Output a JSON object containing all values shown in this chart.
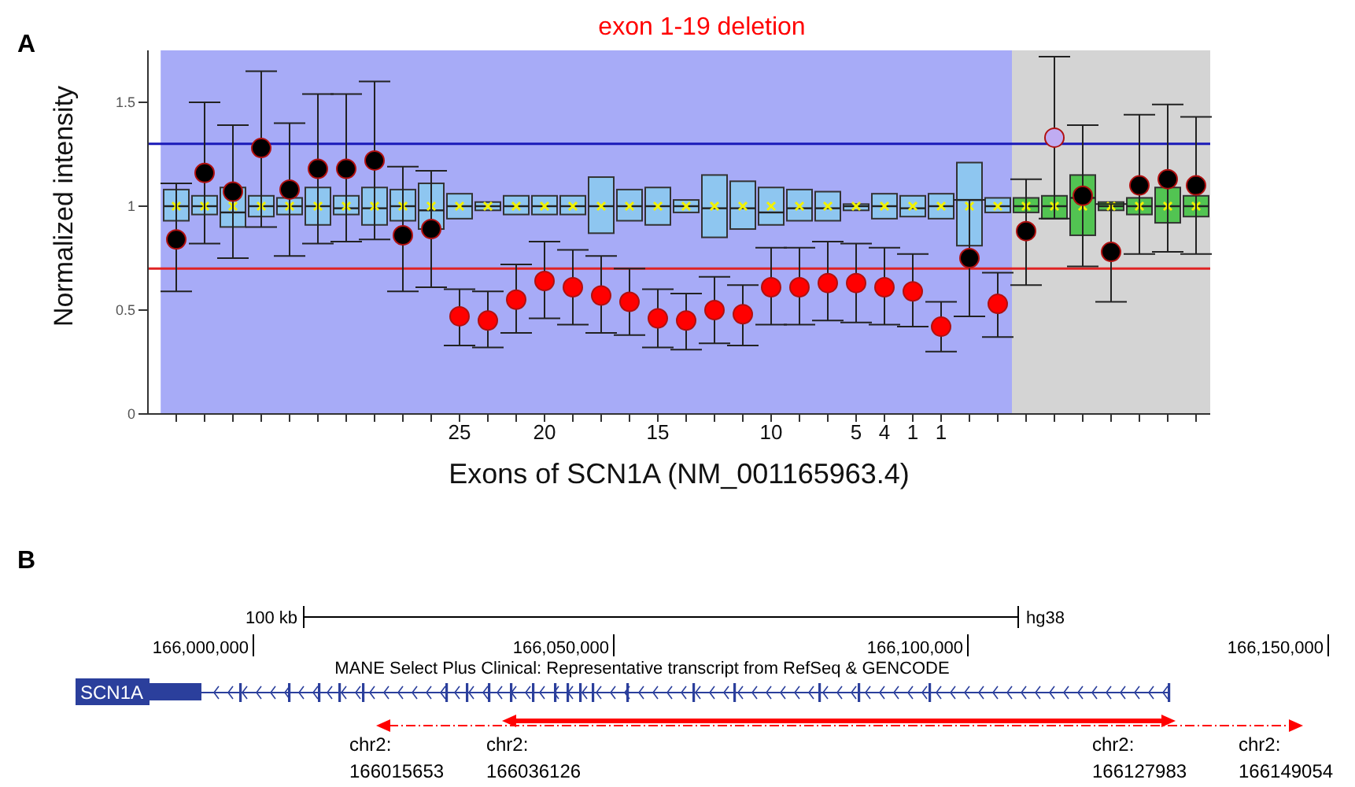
{
  "chart_data": [
    {
      "type": "box",
      "title": "A",
      "xlabel": "Exons of SCN1A (NM_001165963.4)",
      "ylabel": "Normalized intensity",
      "annotations": [
        "exon 1-19 deletion"
      ],
      "categories": [
        null,
        null,
        null,
        null,
        null,
        null,
        null,
        null,
        null,
        null,
        "25",
        null,
        null,
        "20",
        null,
        null,
        null,
        "15",
        null,
        null,
        null,
        "10",
        null,
        null,
        "5",
        "4",
        "1",
        "1",
        null,
        null,
        null,
        null,
        null,
        null,
        null,
        null,
        null
      ],
      "ylim": [
        0,
        1.75
      ],
      "yticks": [
        0,
        0.5,
        1,
        1.5
      ],
      "ref_lines": [
        {
          "axis": "y",
          "value": 1.3,
          "color": "#1a1ab8"
        },
        {
          "axis": "y",
          "value": 0.7,
          "color": "#e02424"
        }
      ],
      "series": [
        {
          "type": "box",
          "colors": [
            "#8ec6f0",
            "#8ec6f0",
            "#8ec6f0",
            "#8ec6f0",
            "#8ec6f0",
            "#8ec6f0",
            "#8ec6f0",
            "#8ec6f0",
            "#8ec6f0",
            "#8ec6f0",
            "#8ec6f0",
            "#8ec6f0",
            "#8ec6f0",
            "#8ec6f0",
            "#8ec6f0",
            "#8ec6f0",
            "#8ec6f0",
            "#8ec6f0",
            "#8ec6f0",
            "#8ec6f0",
            "#8ec6f0",
            "#8ec6f0",
            "#8ec6f0",
            "#8ec6f0",
            "#8ec6f0",
            "#8ec6f0",
            "#8ec6f0",
            "#8ec6f0",
            "#8ec6f0",
            "#8ec6f0",
            "#52c452",
            "#52c452",
            "#52c452",
            "#52c452",
            "#52c452",
            "#52c452",
            "#52c452"
          ],
          "boxes": [
            {
              "q1": 0.93,
              "median": 1.0,
              "q3": 1.08,
              "mean": 1.0
            },
            {
              "q1": 0.96,
              "median": 1.0,
              "q3": 1.05,
              "mean": 1.0
            },
            {
              "q1": 0.9,
              "median": 0.97,
              "q3": 1.09,
              "mean": 1.0
            },
            {
              "q1": 0.95,
              "median": 1.0,
              "q3": 1.05,
              "mean": 1.0
            },
            {
              "q1": 0.96,
              "median": 1.0,
              "q3": 1.04,
              "mean": 1.0
            },
            {
              "q1": 0.91,
              "median": 1.0,
              "q3": 1.09,
              "mean": 1.0
            },
            {
              "q1": 0.96,
              "median": 0.99,
              "q3": 1.05,
              "mean": 1.0
            },
            {
              "q1": 0.91,
              "median": 0.99,
              "q3": 1.09,
              "mean": 1.0
            },
            {
              "q1": 0.93,
              "median": 1.0,
              "q3": 1.08,
              "mean": 1.0
            },
            {
              "q1": 0.89,
              "median": 0.98,
              "q3": 1.11,
              "mean": 1.0
            },
            {
              "q1": 0.94,
              "median": 1.0,
              "q3": 1.06,
              "mean": 1.0
            },
            {
              "q1": 0.98,
              "median": 1.0,
              "q3": 1.02,
              "mean": 1.0
            },
            {
              "q1": 0.96,
              "median": 1.0,
              "q3": 1.05,
              "mean": 1.0
            },
            {
              "q1": 0.96,
              "median": 1.0,
              "q3": 1.05,
              "mean": 1.0
            },
            {
              "q1": 0.96,
              "median": 1.0,
              "q3": 1.05,
              "mean": 1.0
            },
            {
              "q1": 0.87,
              "median": 1.0,
              "q3": 1.14,
              "mean": 1.0
            },
            {
              "q1": 0.93,
              "median": 1.0,
              "q3": 1.08,
              "mean": 1.0
            },
            {
              "q1": 0.91,
              "median": 1.0,
              "q3": 1.09,
              "mean": 1.0
            },
            {
              "q1": 0.97,
              "median": 1.0,
              "q3": 1.03,
              "mean": 1.0
            },
            {
              "q1": 0.85,
              "median": 0.99,
              "q3": 1.15,
              "mean": 1.0
            },
            {
              "q1": 0.89,
              "median": 0.99,
              "q3": 1.12,
              "mean": 1.0
            },
            {
              "q1": 0.91,
              "median": 0.97,
              "q3": 1.09,
              "mean": 1.0
            },
            {
              "q1": 0.93,
              "median": 0.99,
              "q3": 1.08,
              "mean": 1.0
            },
            {
              "q1": 0.93,
              "median": 0.99,
              "q3": 1.07,
              "mean": 1.0
            },
            {
              "q1": 0.98,
              "median": 1.0,
              "q3": 1.01,
              "mean": 1.0
            },
            {
              "q1": 0.94,
              "median": 1.0,
              "q3": 1.06,
              "mean": 1.0
            },
            {
              "q1": 0.95,
              "median": 0.99,
              "q3": 1.05,
              "mean": 1.0
            },
            {
              "q1": 0.94,
              "median": 1.0,
              "q3": 1.06,
              "mean": 1.0
            },
            {
              "q1": 0.81,
              "median": 1.03,
              "q3": 1.21,
              "mean": 1.0
            },
            {
              "q1": 0.97,
              "median": 1.0,
              "q3": 1.04,
              "mean": 1.0
            },
            {
              "q1": 0.97,
              "median": 1.0,
              "q3": 1.04,
              "mean": 1.0
            },
            {
              "q1": 0.94,
              "median": 1.0,
              "q3": 1.05,
              "mean": 1.0
            },
            {
              "q1": 0.86,
              "median": 1.04,
              "q3": 1.15,
              "mean": 1.0
            },
            {
              "q1": 0.98,
              "median": 1.0,
              "q3": 1.02,
              "mean": 1.0
            },
            {
              "q1": 0.96,
              "median": 1.0,
              "q3": 1.04,
              "mean": 1.0
            },
            {
              "q1": 0.92,
              "median": 1.0,
              "q3": 1.09,
              "mean": 1.0
            },
            {
              "q1": 0.95,
              "median": 1.0,
              "q3": 1.05,
              "mean": 1.0
            }
          ]
        },
        {
          "type": "scatter",
          "marker": "circle",
          "colors": [
            "#000000",
            "#000000",
            "#000000",
            "#000000",
            "#000000",
            "#000000",
            "#000000",
            "#000000",
            "#000000",
            "#000000",
            "#ff0000",
            "#ff0000",
            "#ff0000",
            "#ff0000",
            "#ff0000",
            "#ff0000",
            "#ff0000",
            "#ff0000",
            "#ff0000",
            "#ff0000",
            "#ff0000",
            "#ff0000",
            "#ff0000",
            "#ff0000",
            "#ff0000",
            "#ff0000",
            "#ff0000",
            "#ff0000",
            "#000000",
            "#ff0000",
            "#000000",
            "#c0acf2",
            "#000000",
            "#000000",
            "#000000",
            "#000000",
            "#000000"
          ],
          "values": [
            0.84,
            1.16,
            1.07,
            1.28,
            1.08,
            1.18,
            1.18,
            1.22,
            0.86,
            0.89,
            0.47,
            0.45,
            0.55,
            0.64,
            0.61,
            0.57,
            0.54,
            0.46,
            0.45,
            0.5,
            0.48,
            0.61,
            0.61,
            0.63,
            0.63,
            0.61,
            0.59,
            0.42,
            0.75,
            0.53,
            0.88,
            1.33,
            1.05,
            0.78,
            1.1,
            1.13,
            1.1
          ],
          "errors": [
            [
              0.59,
              1.11
            ],
            [
              0.82,
              1.5
            ],
            [
              0.75,
              1.39
            ],
            [
              0.9,
              1.65
            ],
            [
              0.76,
              1.4
            ],
            [
              0.82,
              1.54
            ],
            [
              0.83,
              1.54
            ],
            [
              0.84,
              1.6
            ],
            [
              0.59,
              1.19
            ],
            [
              0.61,
              1.17
            ],
            [
              0.33,
              0.6
            ],
            [
              0.32,
              0.59
            ],
            [
              0.39,
              0.72
            ],
            [
              0.46,
              0.83
            ],
            [
              0.43,
              0.79
            ],
            [
              0.39,
              0.76
            ],
            [
              0.38,
              0.7
            ],
            [
              0.32,
              0.6
            ],
            [
              0.31,
              0.58
            ],
            [
              0.34,
              0.66
            ],
            [
              0.33,
              0.62
            ],
            [
              0.43,
              0.8
            ],
            [
              0.43,
              0.8
            ],
            [
              0.45,
              0.83
            ],
            [
              0.44,
              0.82
            ],
            [
              0.43,
              0.8
            ],
            [
              0.42,
              0.77
            ],
            [
              0.3,
              0.54
            ],
            [
              0.47,
              1.03
            ],
            [
              0.37,
              0.68
            ],
            [
              0.62,
              1.13
            ],
            [
              0.94,
              1.72
            ],
            [
              0.71,
              1.39
            ],
            [
              0.54,
              1.01
            ],
            [
              0.77,
              1.44
            ],
            [
              0.78,
              1.49
            ],
            [
              0.77,
              1.43
            ]
          ]
        }
      ]
    },
    {
      "type": "other",
      "title": "B",
      "annotations": [
        "100 kb",
        "hg38",
        "166,000,000",
        "166,050,000",
        "166,100,000",
        "166,150,000",
        "MANE Select Plus Clinical: Representative transcript from RefSeq & GENCODE",
        "SCN1A",
        "chr2: 166015653",
        "chr2: 166036126",
        "chr2: 166127983",
        "chr2: 166149054"
      ]
    }
  ]
}
